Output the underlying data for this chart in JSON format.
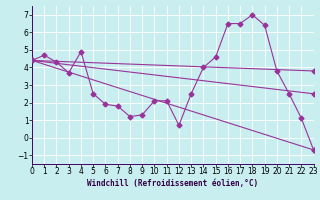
{
  "xlabel": "Windchill (Refroidissement éolien,°C)",
  "bg_color": "#c8eef0",
  "line_color": "#993399",
  "series_main": {
    "x": [
      0,
      1,
      2,
      3,
      4,
      5,
      6,
      7,
      8,
      9,
      10,
      11,
      12,
      13,
      14,
      15,
      16,
      17,
      18,
      19,
      20,
      21,
      22,
      23
    ],
    "y": [
      4.4,
      4.7,
      4.3,
      3.7,
      4.9,
      2.5,
      1.9,
      1.8,
      1.2,
      1.3,
      2.1,
      2.1,
      0.7,
      2.5,
      4.0,
      4.6,
      6.5,
      6.5,
      7.0,
      6.4,
      3.8,
      2.5,
      1.1,
      -0.7
    ]
  },
  "series_lines": [
    {
      "x": [
        0,
        23
      ],
      "y": [
        4.4,
        3.8
      ]
    },
    {
      "x": [
        0,
        23
      ],
      "y": [
        4.4,
        2.5
      ]
    },
    {
      "x": [
        0,
        23
      ],
      "y": [
        4.4,
        -0.7
      ]
    }
  ],
  "xlim": [
    0,
    23
  ],
  "ylim": [
    -1.5,
    7.5
  ],
  "yticks": [
    -1,
    0,
    1,
    2,
    3,
    4,
    5,
    6,
    7
  ],
  "xtick_labels": [
    "0",
    "1",
    "2",
    "3",
    "4",
    "5",
    "6",
    "7",
    "8",
    "9",
    "10",
    "11",
    "12",
    "13",
    "14",
    "15",
    "16",
    "17",
    "18",
    "19",
    "20",
    "21",
    "22",
    "23"
  ],
  "marker": "D",
  "marker_size": 2.5,
  "line_width": 0.8,
  "tick_fontsize": 5.5,
  "xlabel_fontsize": 5.5
}
